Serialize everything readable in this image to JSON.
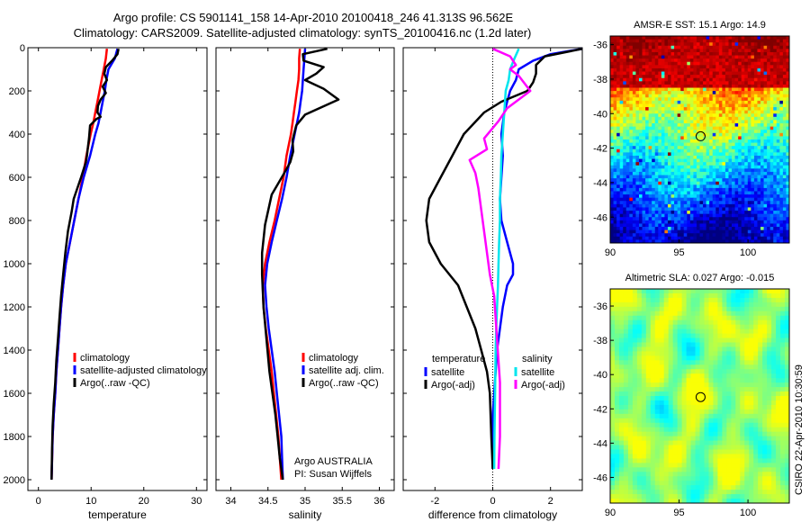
{
  "title": {
    "line1": "Argo profile: CS 5901141_158 14-Apr-2010 20100418_246 41.313S 96.562E",
    "line2": "Climatology: CARS2009. Satellite-adjusted climatology: synTS_20100416.nc (1.2d later)"
  },
  "credit": "CSIRO 22-Apr-2010 10:30:59",
  "colors": {
    "climatology": "#ff0000",
    "satellite": "#0000ff",
    "argo": "#000000",
    "sal_satellite": "#00e5ee",
    "sal_argo": "#ff00ff",
    "argo_marker": "#000000"
  },
  "chart_data": [
    {
      "type": "line",
      "id": "temperature",
      "xlabel": "temperature",
      "ylabel": "",
      "xlim": [
        -2,
        32
      ],
      "ylim": [
        0,
        2050
      ],
      "y_reversed": true,
      "xticks": [
        0,
        10,
        20,
        30
      ],
      "xtick_labels": [
        "0",
        "10",
        "20",
        "30"
      ],
      "yticks": [
        0,
        200,
        400,
        600,
        800,
        1000,
        1200,
        1400,
        1600,
        1800,
        2000
      ],
      "ytick_labels": [
        "0",
        "200",
        "400",
        "600",
        "800",
        "1000",
        "1200",
        "1400",
        "1600",
        "1800",
        "2000"
      ],
      "legend": [
        "climatology",
        "satellite-adjusted climatology",
        "Argo(..raw -QC)"
      ],
      "legend_position": "lower-right",
      "series": [
        {
          "name": "climatology",
          "color": "#ff0000",
          "x": [
            13.0,
            12.8,
            12.4,
            12.0,
            11.6,
            11.2,
            10.8,
            10.4,
            9.9,
            9.1,
            8.4,
            7.6,
            6.8,
            6.0,
            5.2,
            4.7,
            4.3,
            4.0,
            3.7,
            3.4,
            3.2,
            2.9,
            2.7,
            2.6,
            2.5
          ],
          "y": [
            5,
            50,
            100,
            150,
            200,
            250,
            300,
            350,
            400,
            500,
            600,
            700,
            800,
            900,
            1000,
            1100,
            1200,
            1300,
            1400,
            1500,
            1600,
            1700,
            1800,
            1900,
            2000
          ]
        },
        {
          "name": "satellite",
          "color": "#0000ff",
          "x": [
            15.0,
            14.5,
            13.3,
            12.9,
            12.6,
            12.2,
            11.8,
            11.4,
            10.8,
            9.8,
            8.6,
            7.6,
            6.8,
            6.0,
            5.2,
            4.7,
            4.3,
            4.0,
            3.7,
            3.4,
            3.2,
            2.9,
            2.7,
            2.6,
            2.5
          ],
          "y": [
            5,
            50,
            100,
            150,
            200,
            250,
            300,
            350,
            400,
            500,
            600,
            700,
            800,
            900,
            1000,
            1100,
            1200,
            1300,
            1400,
            1500,
            1600,
            1700,
            1800,
            1900,
            2000
          ]
        },
        {
          "name": "argo",
          "color": "#000000",
          "x": [
            15.2,
            15.0,
            14.0,
            12.8,
            12.5,
            13.0,
            12.2,
            12.8,
            11.8,
            11.3,
            11.2,
            11.8,
            11.0,
            9.8,
            9.6,
            9.4,
            9.2,
            9.0,
            8.1,
            6.7,
            6.3,
            5.6,
            5.1,
            4.7,
            4.3,
            4.0,
            3.7,
            3.4,
            3.2,
            2.9,
            2.7,
            2.6,
            2.5
          ],
          "y": [
            5,
            30,
            60,
            90,
            120,
            150,
            180,
            210,
            240,
            270,
            300,
            320,
            330,
            360,
            420,
            460,
            500,
            530,
            600,
            700,
            760,
            850,
            950,
            1050,
            1150,
            1250,
            1350,
            1450,
            1550,
            1650,
            1750,
            1850,
            2000
          ]
        }
      ]
    },
    {
      "type": "line",
      "id": "salinity",
      "xlabel": "salinity",
      "ylabel": "",
      "xlim": [
        33.8,
        36.2
      ],
      "ylim": [
        0,
        2050
      ],
      "y_reversed": true,
      "xticks": [
        34,
        34.5,
        35,
        35.5,
        36
      ],
      "xtick_labels": [
        "34",
        "34.5",
        "35",
        "35.5",
        "36"
      ],
      "legend": [
        "climatology",
        "satellite adj. clim.",
        "Argo(..raw -QC)"
      ],
      "legend_position": "lower-right",
      "annotation": [
        "Argo AUSTRALIA",
        "PI: Susan Wijffels"
      ],
      "series": [
        {
          "name": "climatology",
          "color": "#ff0000",
          "x": [
            34.93,
            34.92,
            34.92,
            34.91,
            34.89,
            34.87,
            34.85,
            34.83,
            34.81,
            34.75,
            34.71,
            34.65,
            34.59,
            34.52,
            34.46,
            34.43,
            34.44,
            34.47,
            34.51,
            34.55,
            34.58,
            34.61,
            34.64,
            34.66,
            34.68
          ],
          "y": [
            5,
            50,
            100,
            150,
            200,
            250,
            300,
            350,
            400,
            500,
            600,
            700,
            800,
            900,
            1000,
            1100,
            1200,
            1300,
            1400,
            1500,
            1600,
            1700,
            1800,
            1900,
            2000
          ]
        },
        {
          "name": "satellite",
          "color": "#0000ff",
          "x": [
            35.0,
            34.99,
            34.98,
            34.97,
            34.96,
            34.94,
            34.92,
            34.89,
            34.86,
            34.8,
            34.75,
            34.69,
            34.62,
            34.55,
            34.49,
            34.46,
            34.48,
            34.51,
            34.55,
            34.59,
            34.62,
            34.65,
            34.68,
            34.69,
            34.7
          ],
          "y": [
            5,
            50,
            100,
            150,
            200,
            250,
            300,
            350,
            400,
            500,
            600,
            700,
            800,
            900,
            1000,
            1100,
            1200,
            1300,
            1400,
            1500,
            1600,
            1700,
            1800,
            1900,
            2000
          ]
        },
        {
          "name": "argo",
          "color": "#000000",
          "x": [
            35.3,
            34.97,
            34.98,
            35.25,
            35.15,
            35.0,
            35.25,
            35.45,
            35.0,
            34.88,
            34.83,
            34.84,
            34.8,
            34.72,
            34.55,
            34.46,
            34.42,
            34.42,
            34.44,
            34.48,
            34.52,
            34.56,
            34.6,
            34.63,
            34.66,
            34.68,
            34.7
          ],
          "y": [
            5,
            30,
            60,
            90,
            120,
            150,
            190,
            240,
            310,
            360,
            430,
            480,
            530,
            580,
            680,
            820,
            950,
            1050,
            1200,
            1350,
            1500,
            1600,
            1700,
            1800,
            1900,
            1950,
            2000
          ]
        }
      ]
    },
    {
      "type": "line",
      "id": "difference",
      "xlabel": "difference from climatology",
      "ylabel": "",
      "xlim": [
        -3.1,
        3.1
      ],
      "ylim": [
        0,
        2050
      ],
      "y_reversed": true,
      "xticks": [
        -2,
        0,
        2
      ],
      "xtick_labels": [
        "-2",
        "0",
        "2"
      ],
      "zero_line": "dotted",
      "legend_groups": [
        {
          "title": "temperature",
          "entries": [
            "satellite",
            "Argo(-adj)"
          ]
        },
        {
          "title": "salinity",
          "entries": [
            "satellite",
            "Argo(-adj)"
          ]
        }
      ],
      "legend_position": "lower-center",
      "series": [
        {
          "name": "temperature satellite",
          "color": "#0000ff",
          "x": [
            3.1,
            2.0,
            1.4,
            0.9,
            0.8,
            0.6,
            0.5,
            0.4,
            0.3,
            0.35,
            0.3,
            0.25,
            0.3,
            0.5,
            0.7,
            0.7,
            0.5,
            0.35,
            0.25,
            0.15,
            0.1,
            0.05,
            0.0,
            0.0,
            0.0
          ],
          "y": [
            5,
            30,
            60,
            100,
            150,
            200,
            250,
            300,
            400,
            500,
            600,
            700,
            800,
            900,
            1000,
            1050,
            1100,
            1200,
            1300,
            1400,
            1500,
            1600,
            1700,
            1800,
            1950
          ]
        },
        {
          "name": "temperature Argo(-adj)",
          "color": "#000000",
          "x": [
            3.1,
            1.8,
            1.5,
            1.5,
            1.4,
            1.2,
            0.3,
            -0.3,
            -1.0,
            -1.4,
            -1.8,
            -2.2,
            -2.3,
            -2.2,
            -1.8,
            -1.2,
            -0.9,
            -0.6,
            -0.4,
            -0.2,
            -0.1,
            -0.05,
            0.0
          ],
          "y": [
            5,
            40,
            80,
            120,
            160,
            200,
            250,
            300,
            400,
            500,
            600,
            700,
            800,
            900,
            1000,
            1100,
            1200,
            1300,
            1400,
            1500,
            1600,
            1800,
            1950
          ]
        },
        {
          "name": "salinity satellite",
          "color": "#00e5ee",
          "x": [
            0.9,
            0.75,
            0.6,
            0.55,
            0.45,
            0.4,
            0.35,
            0.3,
            0.28,
            0.25,
            0.25,
            0.22,
            0.2,
            0.18,
            0.15,
            0.12,
            0.1,
            0.08,
            0.06,
            0.05
          ],
          "y": [
            5,
            50,
            100,
            150,
            200,
            300,
            400,
            500,
            600,
            700,
            800,
            900,
            1000,
            1100,
            1200,
            1300,
            1400,
            1600,
            1800,
            1950
          ]
        },
        {
          "name": "salinity Argo(-adj)",
          "color": "#ff00ff",
          "x": [
            0.0,
            0.6,
            0.8,
            0.6,
            0.9,
            1.3,
            0.5,
            0.2,
            -0.3,
            -0.2,
            -0.8,
            -0.6,
            -0.5,
            -0.4,
            -0.3,
            -0.2,
            -0.1,
            0.05,
            0.1,
            0.15,
            0.2,
            0.25,
            0.25,
            0.25,
            0.2
          ],
          "y": [
            5,
            40,
            80,
            100,
            130,
            200,
            280,
            340,
            420,
            470,
            520,
            580,
            650,
            750,
            850,
            950,
            1050,
            1150,
            1250,
            1350,
            1450,
            1550,
            1650,
            1800,
            1950
          ]
        }
      ]
    },
    {
      "type": "heatmap",
      "id": "sst_map",
      "title": "AMSR-E SST: 15.1 Argo: 14.9",
      "xlim": [
        90,
        103
      ],
      "ylim": [
        -47.5,
        -35.5
      ],
      "xticks": [
        90,
        95,
        100
      ],
      "xtick_labels": [
        "90",
        "95",
        "100"
      ],
      "yticks": [
        -36,
        -38,
        -40,
        -42,
        -44,
        -46
      ],
      "ytick_labels": [
        "-36",
        "-38",
        "-40",
        "-42",
        "-44",
        "-46"
      ],
      "marker": {
        "lon": 96.562,
        "lat": -41.313
      },
      "colormap": "jet"
    },
    {
      "type": "heatmap",
      "id": "sla_map",
      "title": "Altimetric SLA: 0.027 Argo: -0.015",
      "xlim": [
        90,
        103
      ],
      "ylim": [
        -47.5,
        -35
      ],
      "xticks": [
        90,
        95,
        100
      ],
      "xtick_labels": [
        "90",
        "95",
        "100"
      ],
      "yticks": [
        -36,
        -38,
        -40,
        -42,
        -44,
        -46
      ],
      "ytick_labels": [
        "-36",
        "-38",
        "-40",
        "-42",
        "-44",
        "-46"
      ],
      "marker": {
        "lon": 96.562,
        "lat": -41.313
      },
      "colormap": "jet"
    }
  ]
}
